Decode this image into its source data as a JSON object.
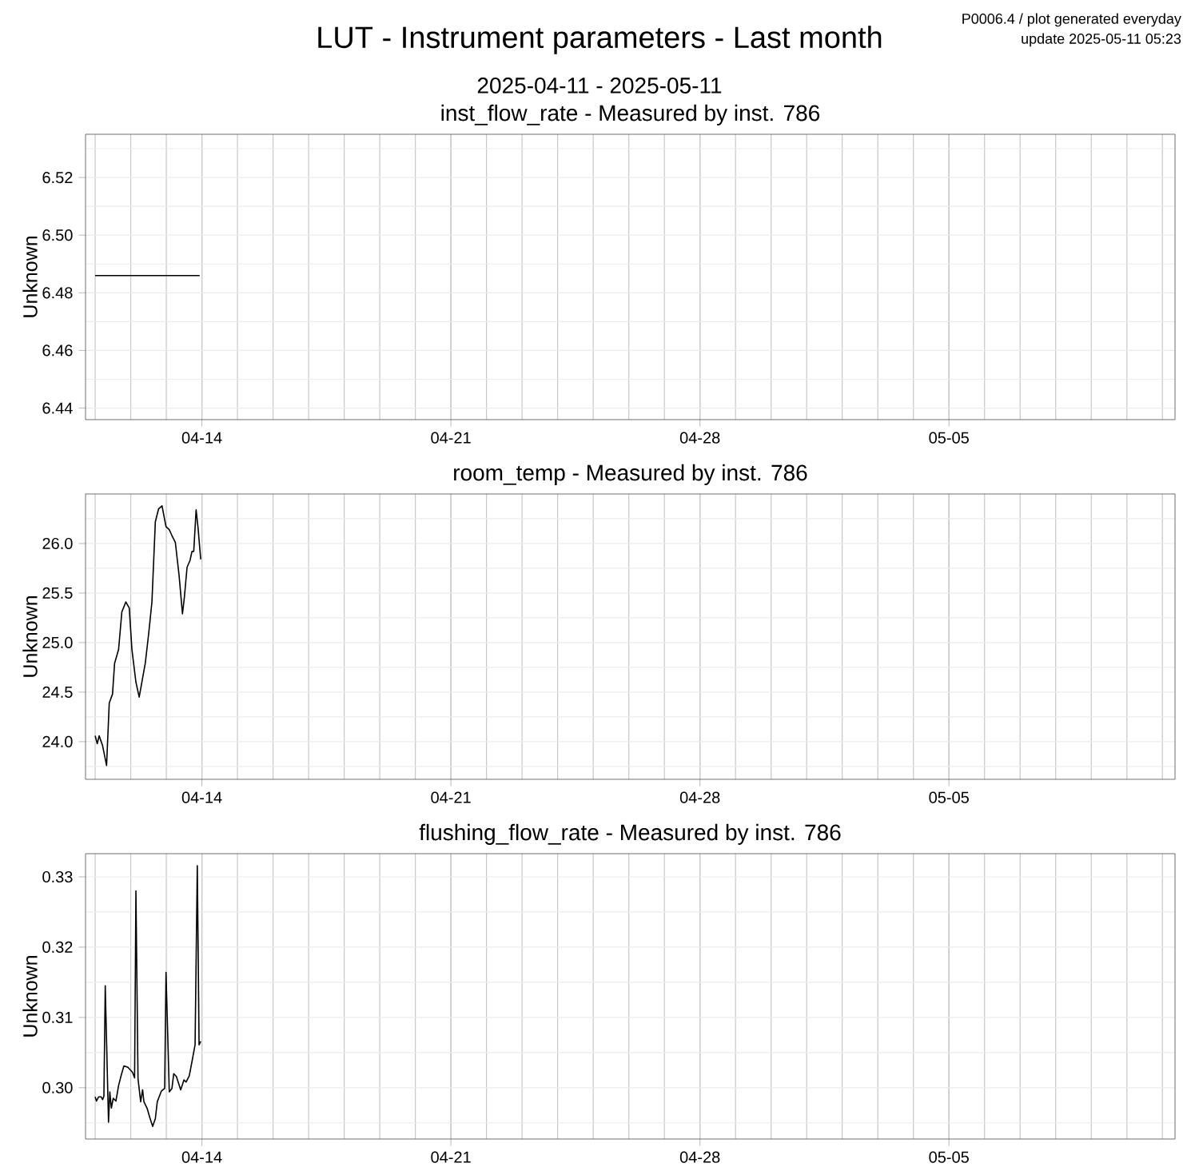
{
  "chart_data": [
    {
      "type": "other",
      "title": "LUT - Instrument parameters - Last month",
      "subtitle": "2025-04-11 - 2025-05-11",
      "annotations": [
        "P0006.4 / plot generated everyday",
        "update  2025-05-11 05:23"
      ]
    },
    {
      "type": "line",
      "title": "inst_flow_rate - Measured by inst. 786",
      "ylabel": "Unknown",
      "grid": true,
      "xlim": [
        "2025-04-10T17:30",
        "2025-05-11T08:30"
      ],
      "xticks": [
        {
          "value": "2025-04-14",
          "label": "04-14"
        },
        {
          "value": "2025-04-21",
          "label": "04-21"
        },
        {
          "value": "2025-04-28",
          "label": "04-28"
        },
        {
          "value": "2025-05-05",
          "label": "05-05"
        }
      ],
      "ylim": [
        6.436,
        6.535
      ],
      "yticks": [
        6.44,
        6.46,
        6.48,
        {
          "value": 6.5,
          "label": "6.50"
        },
        6.52
      ],
      "series": [
        {
          "color": "#000000",
          "x": [
            "2025-04-11T00:00",
            "2025-04-13T22:30"
          ],
          "values": [
            6.486,
            6.486
          ]
        }
      ]
    },
    {
      "type": "line",
      "title": "room_temp - Measured by inst. 786",
      "ylabel": "Unknown",
      "grid": true,
      "xlim": [
        "2025-04-10T17:30",
        "2025-05-11T08:30"
      ],
      "xticks": [
        {
          "value": "2025-04-14",
          "label": "04-14"
        },
        {
          "value": "2025-04-21",
          "label": "04-21"
        },
        {
          "value": "2025-04-28",
          "label": "04-28"
        },
        {
          "value": "2025-05-05",
          "label": "05-05"
        }
      ],
      "ylim": [
        23.62,
        26.5
      ],
      "yticks": [
        {
          "value": 24,
          "label": "24.0"
        },
        24.5,
        {
          "value": 25,
          "label": "25.0"
        },
        25.5,
        {
          "value": 26,
          "label": "26.0"
        }
      ],
      "series": [
        {
          "color": "#000000",
          "x": [
            "2025-04-11T00:00",
            "2025-04-11T01:24",
            "2025-04-11T02:42",
            "2025-04-11T05:00",
            "2025-04-11T07:42",
            "2025-04-11T09:30",
            "2025-04-11T11:42",
            "2025-04-11T13:06",
            "2025-04-11T15:48",
            "2025-04-11T18:00",
            "2025-04-11T20:42",
            "2025-04-11T23:00",
            "2025-04-12T00:48",
            "2025-04-12T03:30",
            "2025-04-12T05:42",
            "2025-04-12T09:48",
            "2025-04-12T12:06",
            "2025-04-12T14:18",
            "2025-04-12T16:36",
            "2025-04-12T18:48",
            "2025-04-12T21:06",
            "2025-04-12T23:48",
            "2025-04-13T02:00",
            "2025-04-13T03:48",
            "2025-04-13T06:06",
            "2025-04-13T08:36",
            "2025-04-13T10:54",
            "2025-04-13T12:12",
            "2025-04-13T14:00",
            "2025-04-13T16:00",
            "2025-04-13T17:18",
            "2025-04-13T18:30",
            "2025-04-13T20:06",
            "2025-04-13T21:24",
            "2025-04-13T23:12"
          ],
          "values": [
            24.06,
            23.98,
            24.06,
            23.96,
            23.76,
            24.39,
            24.48,
            24.79,
            24.93,
            25.31,
            25.41,
            25.35,
            24.93,
            24.6,
            24.45,
            24.79,
            25.09,
            25.41,
            26.22,
            26.35,
            26.38,
            26.17,
            26.14,
            26.08,
            26.01,
            25.68,
            25.29,
            25.46,
            25.76,
            25.83,
            25.92,
            25.92,
            26.34,
            26.16,
            25.84
          ]
        }
      ]
    },
    {
      "type": "line",
      "title": "flushing_flow_rate - Measured by inst. 786",
      "ylabel": "Unknown",
      "grid": true,
      "xlim": [
        "2025-04-10T17:30",
        "2025-05-11T08:30"
      ],
      "xticks": [
        {
          "value": "2025-04-14",
          "label": "04-14"
        },
        {
          "value": "2025-04-21",
          "label": "04-21"
        },
        {
          "value": "2025-04-28",
          "label": "04-28"
        },
        {
          "value": "2025-05-05",
          "label": "05-05"
        }
      ],
      "ylim": [
        0.2927,
        0.3333
      ],
      "yticks": [
        {
          "value": 0.3,
          "label": "0.30"
        },
        0.31,
        0.32,
        0.33
      ],
      "series": [
        {
          "color": "#000000",
          "x": [
            "2025-04-11T00:00",
            "2025-04-11T00:54",
            "2025-04-11T02:18",
            "2025-04-11T04:06",
            "2025-04-11T05:00",
            "2025-04-11T05:54",
            "2025-04-11T06:48",
            "2025-04-11T09:00",
            "2025-04-11T09:54",
            "2025-04-11T10:54",
            "2025-04-11T12:12",
            "2025-04-11T14:00",
            "2025-04-11T15:48",
            "2025-04-11T17:36",
            "2025-04-11T19:24",
            "2025-04-11T22:06",
            "2025-04-12T01:12",
            "2025-04-12T02:36",
            "2025-04-12T03:30",
            "2025-04-12T04:54",
            "2025-04-12T06:42",
            "2025-04-12T08:00",
            "2025-04-12T08:54",
            "2025-04-12T11:00",
            "2025-04-12T12:48",
            "2025-04-12T14:48",
            "2025-04-12T16:36",
            "2025-04-12T17:54",
            "2025-04-12T20:36",
            "2025-04-12T22:54",
            "2025-04-12T23:48",
            "2025-04-13T02:00",
            "2025-04-13T03:48",
            "2025-04-13T05:00",
            "2025-04-13T06:48",
            "2025-04-13T09:42",
            "2025-04-13T11:54",
            "2025-04-13T13:18",
            "2025-04-13T15:30",
            "2025-04-13T17:18",
            "2025-04-13T19:24",
            "2025-04-13T20:54",
            "2025-04-13T22:06",
            "2025-04-13T23:12"
          ],
          "values": [
            0.2987,
            0.2981,
            0.2987,
            0.2987,
            0.2983,
            0.2988,
            0.3145,
            0.2951,
            0.2994,
            0.2971,
            0.2985,
            0.2981,
            0.3003,
            0.3018,
            0.3031,
            0.3029,
            0.3022,
            0.3014,
            0.328,
            0.3013,
            0.298,
            0.2997,
            0.298,
            0.2971,
            0.2958,
            0.2945,
            0.2956,
            0.298,
            0.2995,
            0.2999,
            0.3164,
            0.2994,
            0.2999,
            0.302,
            0.3016,
            0.2997,
            0.3011,
            0.3008,
            0.3017,
            0.3037,
            0.3061,
            0.3316,
            0.3061,
            0.3066
          ]
        }
      ]
    }
  ]
}
